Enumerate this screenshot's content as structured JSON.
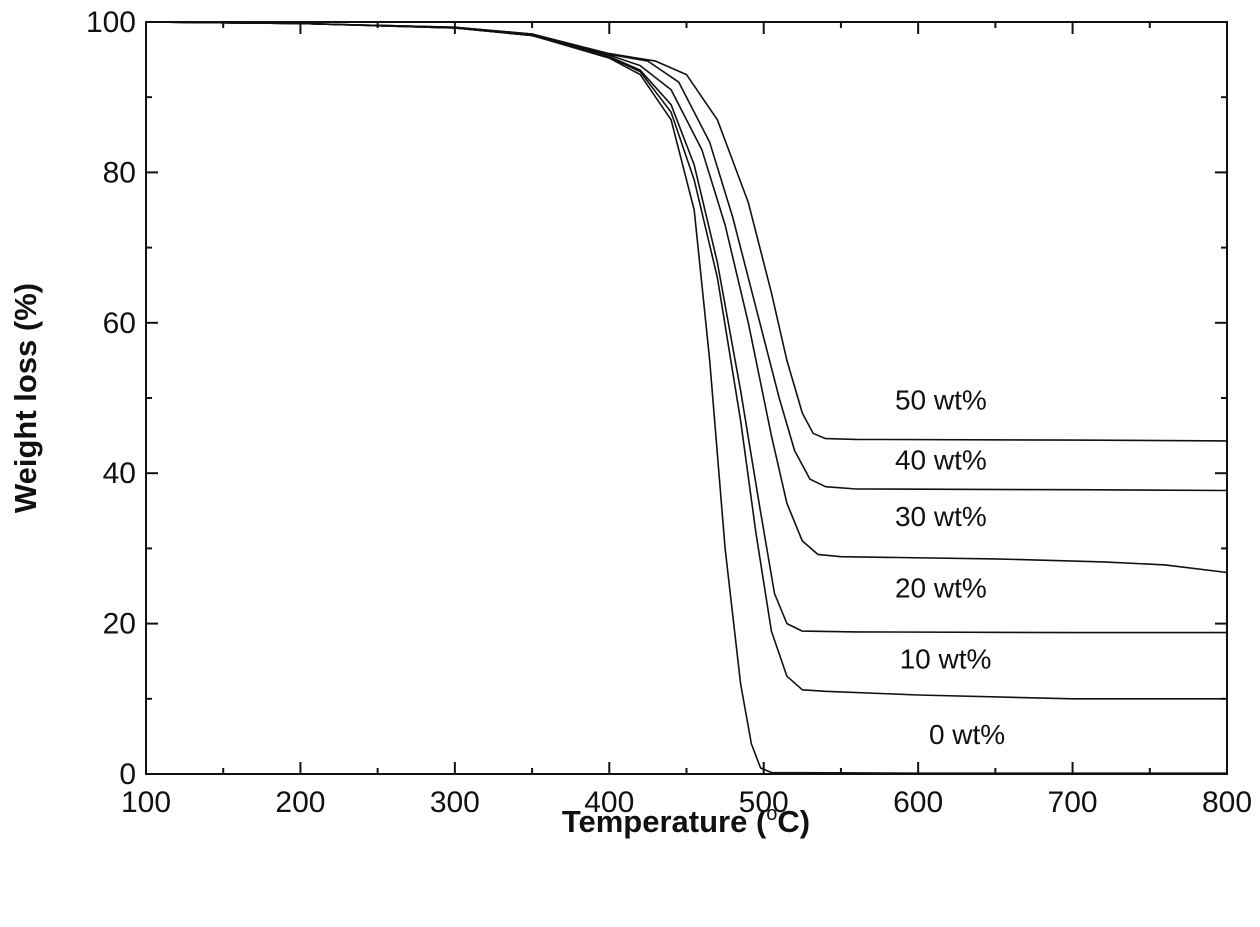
{
  "chart_data": {
    "type": "line",
    "title": "",
    "xlabel": "Temperature (°C)",
    "ylabel": "Weight loss (%)",
    "xlim": [
      100,
      800
    ],
    "ylim": [
      0,
      100
    ],
    "x_ticks": [
      100,
      200,
      300,
      400,
      500,
      600,
      700,
      800
    ],
    "y_ticks": [
      0,
      20,
      40,
      60,
      80,
      100
    ],
    "grid": false,
    "legend": "none",
    "line_color": "#111111",
    "series": [
      {
        "name": "0 wt%",
        "points": [
          [
            100,
            100
          ],
          [
            200,
            99.8
          ],
          [
            300,
            99.2
          ],
          [
            350,
            98.2
          ],
          [
            400,
            95.2
          ],
          [
            420,
            93
          ],
          [
            440,
            87
          ],
          [
            455,
            75
          ],
          [
            465,
            55
          ],
          [
            475,
            30
          ],
          [
            485,
            12
          ],
          [
            492,
            4
          ],
          [
            498,
            0.8
          ],
          [
            505,
            0.2
          ],
          [
            600,
            0.1
          ],
          [
            800,
            0.1
          ]
        ]
      },
      {
        "name": "10 wt%",
        "points": [
          [
            100,
            100
          ],
          [
            200,
            99.8
          ],
          [
            300,
            99.2
          ],
          [
            350,
            98.2
          ],
          [
            400,
            95.3
          ],
          [
            420,
            93.4
          ],
          [
            440,
            88
          ],
          [
            455,
            79
          ],
          [
            470,
            66
          ],
          [
            485,
            47
          ],
          [
            495,
            32
          ],
          [
            505,
            19
          ],
          [
            515,
            13
          ],
          [
            525,
            11.2
          ],
          [
            540,
            11
          ],
          [
            600,
            10.5
          ],
          [
            700,
            10
          ],
          [
            800,
            10
          ]
        ]
      },
      {
        "name": "20 wt%",
        "points": [
          [
            100,
            100
          ],
          [
            200,
            99.8
          ],
          [
            300,
            99.2
          ],
          [
            350,
            98.2
          ],
          [
            400,
            95.4
          ],
          [
            420,
            93.6
          ],
          [
            440,
            89
          ],
          [
            455,
            81
          ],
          [
            470,
            68
          ],
          [
            485,
            51
          ],
          [
            497,
            36
          ],
          [
            507,
            24
          ],
          [
            515,
            20
          ],
          [
            525,
            19
          ],
          [
            560,
            18.9
          ],
          [
            700,
            18.8
          ],
          [
            800,
            18.8
          ]
        ]
      },
      {
        "name": "30 wt%",
        "points": [
          [
            100,
            100
          ],
          [
            200,
            99.8
          ],
          [
            300,
            99.3
          ],
          [
            350,
            98.3
          ],
          [
            400,
            95.6
          ],
          [
            420,
            94.2
          ],
          [
            440,
            91
          ],
          [
            460,
            83
          ],
          [
            475,
            73
          ],
          [
            490,
            60
          ],
          [
            505,
            45
          ],
          [
            515,
            36
          ],
          [
            525,
            31
          ],
          [
            535,
            29.2
          ],
          [
            550,
            28.9
          ],
          [
            650,
            28.6
          ],
          [
            720,
            28.2
          ],
          [
            760,
            27.8
          ],
          [
            800,
            26.8
          ]
        ]
      },
      {
        "name": "40 wt%",
        "points": [
          [
            100,
            100
          ],
          [
            200,
            99.8
          ],
          [
            300,
            99.3
          ],
          [
            350,
            98.4
          ],
          [
            400,
            95.7
          ],
          [
            425,
            94.8
          ],
          [
            445,
            92
          ],
          [
            465,
            84
          ],
          [
            480,
            74
          ],
          [
            495,
            62
          ],
          [
            510,
            50
          ],
          [
            520,
            43
          ],
          [
            530,
            39.2
          ],
          [
            540,
            38.2
          ],
          [
            560,
            37.9
          ],
          [
            700,
            37.8
          ],
          [
            800,
            37.7
          ]
        ]
      },
      {
        "name": "50 wt%",
        "points": [
          [
            100,
            100
          ],
          [
            200,
            99.8
          ],
          [
            300,
            99.3
          ],
          [
            350,
            98.4
          ],
          [
            400,
            95.8
          ],
          [
            430,
            94.8
          ],
          [
            450,
            93
          ],
          [
            470,
            87
          ],
          [
            490,
            76
          ],
          [
            505,
            64
          ],
          [
            515,
            55
          ],
          [
            525,
            48
          ],
          [
            532,
            45.3
          ],
          [
            540,
            44.6
          ],
          [
            560,
            44.5
          ],
          [
            700,
            44.4
          ],
          [
            800,
            44.3
          ]
        ]
      }
    ],
    "annotations": [
      {
        "text": "50 wt%",
        "x": 585,
        "y": 48.5
      },
      {
        "text": "40 wt%",
        "x": 585,
        "y": 40.5
      },
      {
        "text": "30 wt%",
        "x": 585,
        "y": 33
      },
      {
        "text": "20 wt%",
        "x": 585,
        "y": 23.5
      },
      {
        "text": "10 wt%",
        "x": 588,
        "y": 14
      },
      {
        "text": "0 wt%",
        "x": 607,
        "y": 4
      }
    ]
  }
}
